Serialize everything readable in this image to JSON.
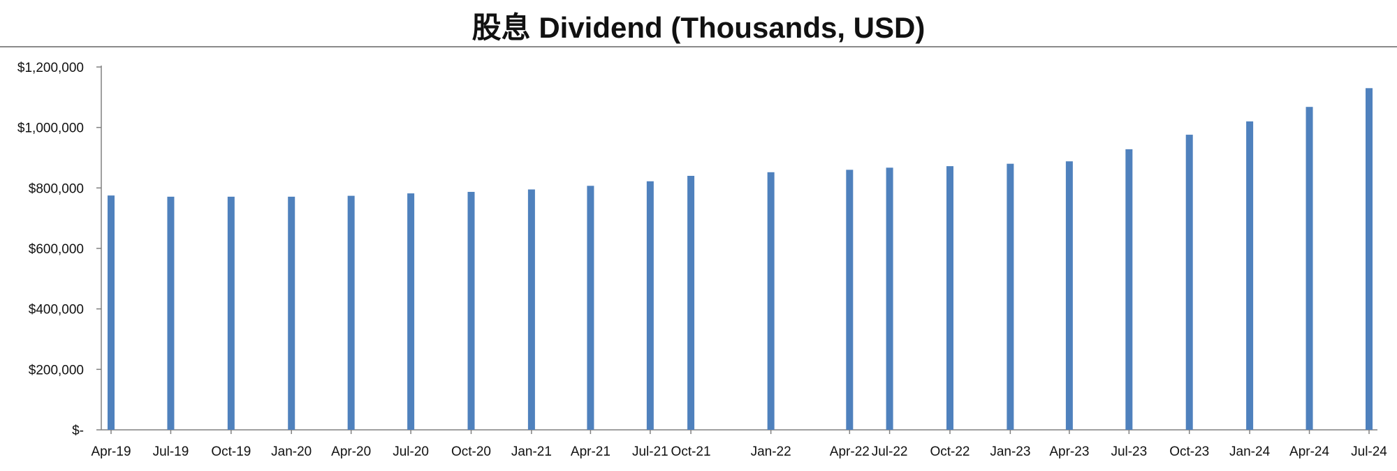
{
  "chart_data": {
    "type": "bar",
    "title": "股息 Dividend (Thousands, USD)",
    "xlabel": "",
    "ylabel": "",
    "ylim": [
      0,
      1200000
    ],
    "y_ticks": [
      0,
      200000,
      400000,
      600000,
      800000,
      1000000,
      1200000
    ],
    "y_tick_labels": [
      "$-",
      "$200,000",
      "$400,000",
      "$600,000",
      "$800,000",
      "$1,000,000",
      "$1,200,000"
    ],
    "x_tick_labels": [
      "Apr-19",
      "Jul-19",
      "Oct-19",
      "Jan-20",
      "Apr-20",
      "Jul-20",
      "Oct-20",
      "Jan-21",
      "Apr-21",
      "Jul-21",
      "Oct-21",
      "Jan-22",
      "Apr-22",
      "Jul-22",
      "Oct-22",
      "Jan-23",
      "Apr-23",
      "Jul-23",
      "Oct-23",
      "Jan-24",
      "Apr-24",
      "Jul-24"
    ],
    "categories": [
      "2019-04-01",
      "2019-07-01",
      "2019-10-01",
      "2020-01-01",
      "2020-04-01",
      "2020-07-01",
      "2020-10-01",
      "2021-01-01",
      "2021-04-01",
      "2021-07-01",
      "2021-09-01",
      "2022-01-01",
      "2022-05-01",
      "2022-07-01",
      "2022-10-01",
      "2023-01-01",
      "2023-04-01",
      "2023-07-01",
      "2023-10-01",
      "2024-01-01",
      "2024-04-01",
      "2024-07-01"
    ],
    "values": [
      775000,
      771000,
      771000,
      771000,
      774000,
      782000,
      787000,
      795000,
      807000,
      822000,
      840000,
      852000,
      860000,
      867000,
      872000,
      880000,
      888000,
      928000,
      976000,
      1020000,
      1068000,
      1130000
    ],
    "grid": false,
    "legend": "none",
    "bar_color": "#4f81bd"
  }
}
